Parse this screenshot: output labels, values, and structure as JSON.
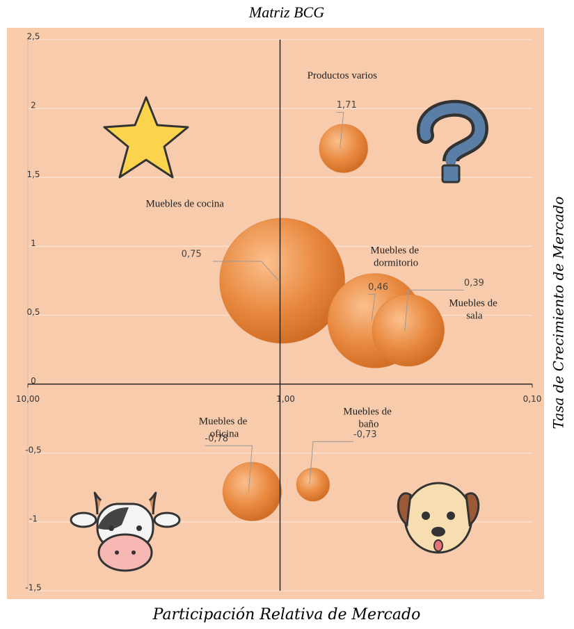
{
  "chart_data": {
    "type": "bubble",
    "title": "Matriz BCG",
    "x_label": "Participación Relativa de Mercado",
    "y_label": "Tasa de Crecimiento de Mercado",
    "labels": [
      "Productos varios",
      "Muebles de cocina",
      "Muebles de dormitorio",
      "Muebles de sala",
      "Muebles de oficina",
      "Muebles de baño"
    ],
    "x": [
      0.56,
      0.98,
      0.42,
      0.31,
      1.29,
      0.74
    ],
    "values": [
      1.71,
      0.75,
      0.46,
      0.39,
      -0.78,
      -0.73
    ],
    "value_labels": [
      "1,71",
      "0,75",
      "0,46",
      "0,39",
      "-0,78",
      "-0,73"
    ],
    "sizes": [
      15,
      100,
      57,
      33,
      22,
      7
    ],
    "color": "#e8883e",
    "xscale": "log",
    "xlim": [
      10,
      0.1
    ],
    "xticks": [
      {
        "value": 10,
        "label": "10,00"
      },
      {
        "value": 1,
        "label": "1,00"
      },
      {
        "value": 0.1,
        "label": "0,10"
      }
    ],
    "ylim": [
      -1.5,
      2.5
    ],
    "yticks": [
      {
        "value": 2.5,
        "label": "2,5"
      },
      2,
      {
        "value": 1.5,
        "label": "1,5"
      },
      1,
      {
        "value": 0.5,
        "label": "0,5"
      },
      0,
      {
        "value": -0.5,
        "label": "-0,5"
      },
      -1,
      {
        "value": -1.5,
        "label": "-1,5"
      }
    ],
    "y_axis_crosses_x_at": 1,
    "grid": true
  }
}
